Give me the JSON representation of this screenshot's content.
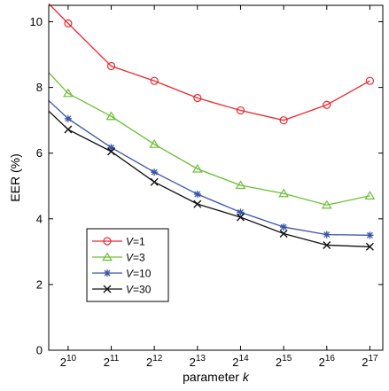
{
  "chart_data": {
    "type": "line",
    "xlabel": "parameter k",
    "xlabel_parts": [
      "parameter ",
      "k"
    ],
    "ylabel": "EER (%)",
    "x": [
      10,
      11,
      12,
      13,
      14,
      15,
      16,
      17
    ],
    "x_tick_base": "2",
    "x_tick_exponents": [
      "10",
      "11",
      "12",
      "13",
      "14",
      "15",
      "16",
      "17"
    ],
    "y_ticks": [
      0,
      2,
      4,
      6,
      8,
      10
    ],
    "xlim": [
      9.55,
      17.3
    ],
    "ylim": [
      0,
      10.5
    ],
    "grid": false,
    "legend_placement": "lower-left",
    "series": [
      {
        "name": "V=1",
        "name_parts": [
          "V",
          "=1"
        ],
        "color": "#e8292f",
        "marker": "circle",
        "values": [
          9.95,
          8.65,
          8.2,
          7.68,
          7.3,
          7.0,
          7.47,
          8.2
        ],
        "lead_in": 10.55
      },
      {
        "name": "V=3",
        "name_parts": [
          "V",
          "=3"
        ],
        "color": "#6abf35",
        "marker": "triangle",
        "values": [
          7.82,
          7.12,
          6.27,
          5.52,
          5.02,
          4.77,
          4.42,
          4.7
        ],
        "lead_in": 8.45
      },
      {
        "name": "V=10",
        "name_parts": [
          "V",
          "=10"
        ],
        "color": "#3a55a8",
        "marker": "asterisk",
        "values": [
          7.05,
          6.17,
          5.42,
          4.75,
          4.2,
          3.75,
          3.52,
          3.5
        ],
        "lead_in": 7.6
      },
      {
        "name": "V=30",
        "name_parts": [
          "V",
          "=30"
        ],
        "color": "#111111",
        "marker": "x",
        "values": [
          6.72,
          6.05,
          5.12,
          4.45,
          4.05,
          3.55,
          3.2,
          3.15
        ],
        "lead_in": 7.28
      }
    ]
  }
}
